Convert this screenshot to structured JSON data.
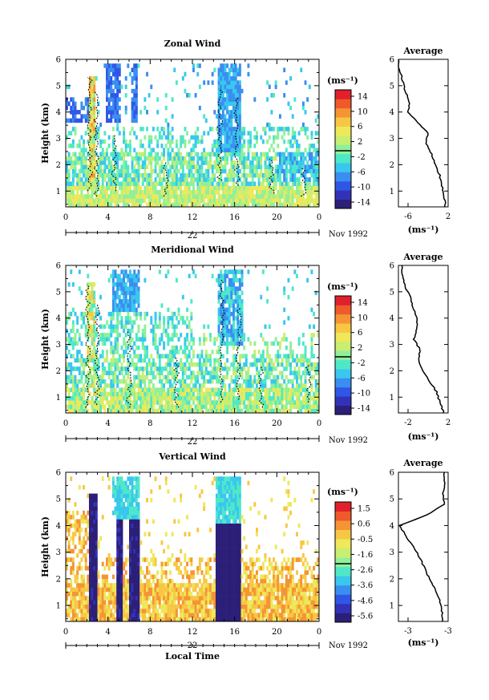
{
  "chart_data": [
    {
      "type": "heatmap",
      "title": "Zonal Wind",
      "ylabel": "Height (km)",
      "xlabel": "",
      "xlim": [
        0,
        24
      ],
      "ylim": [
        0.4,
        6
      ],
      "x_ticks": [
        "0",
        "4",
        "8",
        "12",
        "16",
        "20",
        "0"
      ],
      "y_ticks": [
        "1",
        "2",
        "3",
        "4",
        "5",
        "6"
      ],
      "date_label": "22",
      "month_label": "Nov 1992",
      "colorbar": {
        "unit": "(ms⁻¹)",
        "ticks": [
          "14",
          "10",
          "6",
          "2",
          "-2",
          "-6",
          "-10",
          "-14"
        ],
        "range": [
          -16,
          16
        ]
      },
      "profile": {
        "title": "Average",
        "xlabel": "(ms⁻¹)",
        "x_ticks": [
          "-6",
          "2"
        ],
        "y_ticks": [
          "1",
          "2",
          "3",
          "4",
          "5",
          "6"
        ],
        "xlim": [
          -7,
          2
        ],
        "height": [
          0.4,
          0.8,
          1.2,
          1.6,
          2.0,
          2.4,
          2.8,
          3.2,
          3.6,
          4.0,
          4.4,
          4.8,
          5.2,
          5.6,
          6.0
        ],
        "value": [
          1.5,
          1.3,
          0.9,
          0.5,
          -0.4,
          -1.0,
          -2.0,
          -1.6,
          -3.5,
          -5.2,
          -5.0,
          -5.8,
          -6.2,
          -6.8,
          -7.0
        ]
      }
    },
    {
      "type": "heatmap",
      "title": "Meridional Wind",
      "ylabel": "Height (km)",
      "xlabel": "",
      "xlim": [
        0,
        24
      ],
      "ylim": [
        0.4,
        6
      ],
      "x_ticks": [
        "0",
        "4",
        "8",
        "12",
        "16",
        "20",
        "0"
      ],
      "y_ticks": [
        "1",
        "2",
        "3",
        "4",
        "5",
        "6"
      ],
      "date_label": "22",
      "month_label": "Nov 1992",
      "colorbar": {
        "unit": "(ms⁻¹)",
        "ticks": [
          "14",
          "10",
          "6",
          "2",
          "-2",
          "-6",
          "-10",
          "-14"
        ],
        "range": [
          -16,
          16
        ]
      },
      "profile": {
        "title": "Average",
        "xlabel": "(ms⁻¹)",
        "x_ticks": [
          "-2",
          "2"
        ],
        "y_ticks": [
          "1",
          "2",
          "3",
          "4",
          "5",
          "6"
        ],
        "xlim": [
          -3,
          3
        ],
        "height": [
          0.4,
          0.8,
          1.2,
          1.6,
          2.0,
          2.4,
          2.8,
          3.2,
          3.6,
          4.0,
          4.4,
          4.8,
          5.2,
          5.6,
          6.0
        ],
        "value": [
          2.5,
          2.0,
          1.6,
          0.8,
          -0.1,
          -0.6,
          -0.4,
          -1.1,
          -0.8,
          -0.7,
          -1.3,
          -1.6,
          -2.2,
          -2.5,
          -2.6
        ]
      }
    },
    {
      "type": "heatmap",
      "title": "Vertical Wind",
      "ylabel": "Height (km)",
      "xlabel": "Local Time",
      "xlim": [
        0,
        24
      ],
      "ylim": [
        0.4,
        6
      ],
      "x_ticks": [
        "0",
        "4",
        "8",
        "12",
        "16",
        "20",
        "0"
      ],
      "y_ticks": [
        "1",
        "2",
        "3",
        "4",
        "5",
        "6"
      ],
      "date_label": "22",
      "month_label": "Nov 1992",
      "colorbar": {
        "unit": "(ms⁻¹)",
        "ticks": [
          "1.5",
          "0.6",
          "-0.5",
          "-1.6",
          "-2.6",
          "-3.6",
          "-4.6",
          "-5.6"
        ],
        "range": [
          -6,
          2
        ]
      },
      "profile": {
        "title": "Average",
        "xlabel": "(ms⁻¹)",
        "x_ticks": [
          "-3",
          "-3"
        ],
        "y_ticks": [
          "1",
          "2",
          "3",
          "4",
          "5",
          "6"
        ],
        "xlim": [
          -4,
          0
        ],
        "height": [
          0.4,
          0.8,
          1.2,
          1.6,
          2.0,
          2.4,
          2.8,
          3.2,
          3.6,
          4.0,
          4.4,
          4.8,
          5.2,
          5.6,
          6.0
        ],
        "value": [
          -0.4,
          -0.5,
          -0.7,
          -1.0,
          -1.5,
          -1.9,
          -2.3,
          -2.8,
          -3.4,
          -3.9,
          -1.7,
          -0.3,
          -0.4,
          -0.3,
          -0.3
        ]
      }
    }
  ],
  "colors": {
    "palette": [
      "#2b1f78",
      "#3232b8",
      "#2f57e6",
      "#3a8ef0",
      "#39c7ee",
      "#4ee8c8",
      "#8ff09a",
      "#c8ee72",
      "#eee85a",
      "#f7c744",
      "#f59434",
      "#ee5a2c",
      "#e0202a"
    ],
    "contour": "#000000",
    "background": "#ffffff"
  }
}
